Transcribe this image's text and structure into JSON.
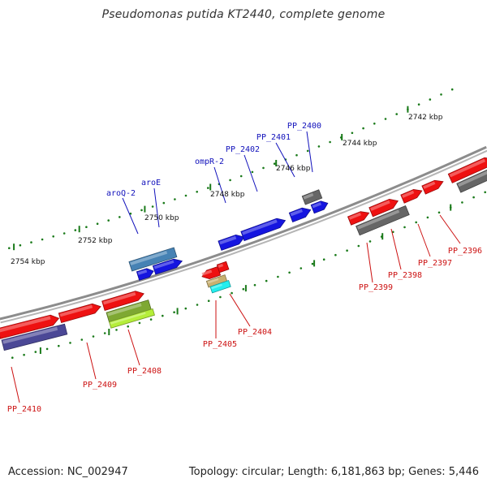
{
  "title": "Pseudomonas putida KT2440, complete genome",
  "footer": {
    "accession": "Accession: NC_002947",
    "topology": "Topology: circular; Length: 6,181,863 bp; Genes: 5,446"
  },
  "colors": {
    "backbone": "#8c8c8c",
    "tick": "#1a7a1a",
    "forward_label": "#1010bb",
    "reverse_label": "#cc1111",
    "gene_red": "#ee1111",
    "gene_blue": "#1515e0",
    "gene_gray": "#666666",
    "gene_steelblue": "#4682b4",
    "gene_navy": "#4b4896",
    "gene_olive": "#7ea832",
    "gene_lime": "#b5ee3a",
    "gene_tan": "#c8b070",
    "gene_cyan": "#22eeee"
  },
  "ticks": [
    "2742 kbp",
    "2744 kbp",
    "2746 kbp",
    "2748 kbp",
    "2750 kbp",
    "2752 kbp",
    "2754 kbp"
  ],
  "forward_labels": [
    "aroQ-2",
    "aroE",
    "ompR-2",
    "PP_2402",
    "PP_2401",
    "PP_2400"
  ],
  "reverse_labels": [
    "PP_2396",
    "PP_2397",
    "PP_2398",
    "PP_2399",
    "PP_2404",
    "PP_2405",
    "PP_2408",
    "PP_2409",
    "PP_2410"
  ]
}
